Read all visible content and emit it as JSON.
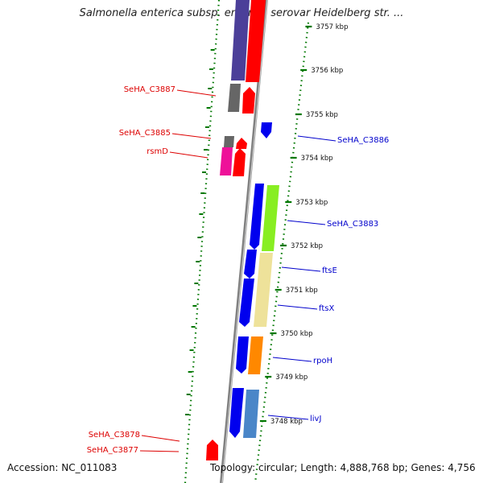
{
  "title": "Salmonella enterica subsp. enterica serovar Heidelberg str. ...",
  "footer": {
    "accession": "Accession: NC_011083",
    "topology": "Topology: circular; Length: 4,888,768 bp; Genes: 4,756"
  },
  "tick_labels": [
    "3757 kbp",
    "3756 kbp",
    "3755 kbp",
    "3754 kbp",
    "3753 kbp",
    "3752 kbp",
    "3751 kbp",
    "3750 kbp",
    "3749 kbp",
    "3748 kbp"
  ],
  "left_genes": [
    {
      "label": "SeHA_C3887",
      "color": "#dd0000"
    },
    {
      "label": "SeHA_C3885",
      "color": "#dd0000"
    },
    {
      "label": "rsmD",
      "color": "#dd0000"
    },
    {
      "label": "SeHA_C3878",
      "color": "#dd0000"
    },
    {
      "label": "SeHA_C3877",
      "color": "#dd0000"
    }
  ],
  "right_genes": [
    {
      "label": "SeHA_C3886",
      "color": "#0000cc"
    },
    {
      "label": "SeHA_C3883",
      "color": "#0000cc"
    },
    {
      "label": "ftsE",
      "color": "#0000cc"
    },
    {
      "label": "ftsX",
      "color": "#0000cc"
    },
    {
      "label": "rpoH",
      "color": "#0000cc"
    },
    {
      "label": "livJ",
      "color": "#0000cc"
    }
  ],
  "colors": {
    "forward_strand": "#0000ee",
    "reverse_strand": "#ff0000",
    "backbone": "#777777",
    "tick": "#007700",
    "slate_blue": "#4b3f99",
    "gray": "#666666",
    "magenta": "#ee1199",
    "lime": "#88ee22",
    "khaki": "#eee29a",
    "orange": "#ff8800",
    "steel_blue": "#4a86c8"
  }
}
